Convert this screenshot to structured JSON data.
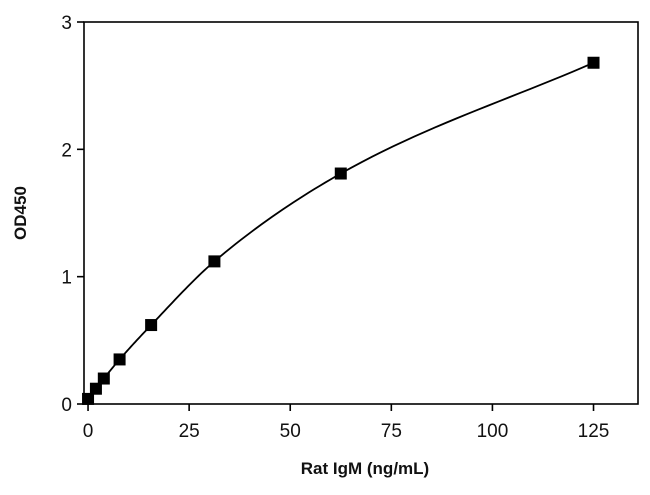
{
  "chart_data": {
    "type": "scatter",
    "title": "",
    "xlabel": "Rat IgM (ng/mL)",
    "ylabel": "OD450",
    "xlim": [
      -1,
      136
    ],
    "ylim": [
      0,
      3
    ],
    "xticks": [
      0,
      25,
      50,
      75,
      100,
      125
    ],
    "yticks": [
      0,
      1,
      2,
      3
    ],
    "grid": false,
    "legend": "none",
    "marker": "square",
    "fit_curve": true,
    "colors": {
      "marker": "#000000",
      "curve": "#000000",
      "axes": "#000000"
    },
    "series": [
      {
        "x": [
          0,
          1.95,
          3.9,
          7.8,
          15.6,
          31.25,
          62.5,
          125
        ],
        "y": [
          0.04,
          0.12,
          0.2,
          0.35,
          0.62,
          1.12,
          1.81,
          2.68
        ]
      }
    ]
  }
}
